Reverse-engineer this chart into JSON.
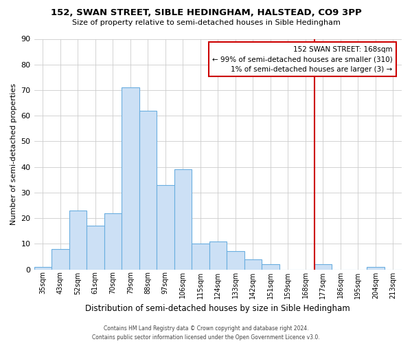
{
  "title": "152, SWAN STREET, SIBLE HEDINGHAM, HALSTEAD, CO9 3PP",
  "subtitle": "Size of property relative to semi-detached houses in Sible Hedingham",
  "xlabel": "Distribution of semi-detached houses by size in Sible Hedingham",
  "ylabel": "Number of semi-detached properties",
  "bin_labels": [
    "35sqm",
    "43sqm",
    "52sqm",
    "61sqm",
    "70sqm",
    "79sqm",
    "88sqm",
    "97sqm",
    "106sqm",
    "115sqm",
    "124sqm",
    "133sqm",
    "142sqm",
    "151sqm",
    "159sqm",
    "168sqm",
    "177sqm",
    "186sqm",
    "195sqm",
    "204sqm",
    "213sqm"
  ],
  "bar_values": [
    1,
    8,
    23,
    17,
    22,
    71,
    62,
    33,
    39,
    10,
    11,
    7,
    4,
    2,
    0,
    0,
    2,
    0,
    0,
    1,
    0
  ],
  "bar_color": "#cce0f5",
  "bar_edge_color": "#6aaee0",
  "highlight_index": 15,
  "highlight_color": "#cc0000",
  "ylim": [
    0,
    90
  ],
  "yticks": [
    0,
    10,
    20,
    30,
    40,
    50,
    60,
    70,
    80,
    90
  ],
  "annotation_title": "152 SWAN STREET: 168sqm",
  "annotation_line1": "← 99% of semi-detached houses are smaller (310)",
  "annotation_line2": "1% of semi-detached houses are larger (3) →",
  "footnote1": "Contains HM Land Registry data © Crown copyright and database right 2024.",
  "footnote2": "Contains public sector information licensed under the Open Government Licence v3.0.",
  "plot_bg_color": "#ffffff",
  "fig_bg_color": "#ffffff",
  "grid_color": "#cccccc"
}
